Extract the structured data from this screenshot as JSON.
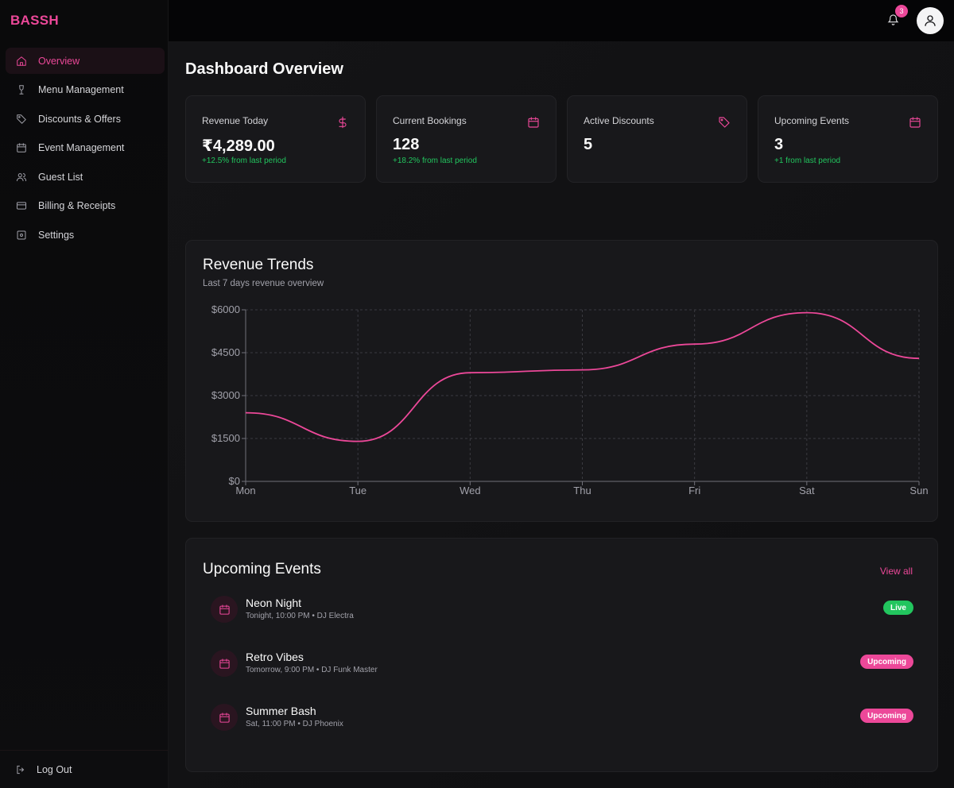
{
  "brand": "BASSH",
  "sidebar": {
    "items": [
      {
        "label": "Overview",
        "icon": "home-icon"
      },
      {
        "label": "Menu Management",
        "icon": "wine-glass-icon"
      },
      {
        "label": "Discounts & Offers",
        "icon": "tag-icon"
      },
      {
        "label": "Event Management",
        "icon": "calendar-icon"
      },
      {
        "label": "Guest List",
        "icon": "users-icon"
      },
      {
        "label": "Billing & Receipts",
        "icon": "credit-card-icon"
      },
      {
        "label": "Settings",
        "icon": "settings-icon"
      }
    ],
    "logout_label": "Log Out"
  },
  "topbar": {
    "notification_count": "3"
  },
  "page": {
    "title": "Dashboard Overview"
  },
  "stats": [
    {
      "label": "Revenue Today",
      "value": "₹4,289.00",
      "change": "+12.5% from last period",
      "icon": "dollar-icon"
    },
    {
      "label": "Current Bookings",
      "value": "128",
      "change": "+18.2% from last period",
      "icon": "calendar-icon"
    },
    {
      "label": "Active Discounts",
      "value": "5",
      "change": "",
      "icon": "tag-icon"
    },
    {
      "label": "Upcoming Events",
      "value": "3",
      "change": "+1 from last period",
      "icon": "calendar-icon"
    }
  ],
  "revenue_panel": {
    "title": "Revenue Trends",
    "subtitle": "Last 7 days revenue overview"
  },
  "chart_data": {
    "type": "line",
    "categories": [
      "Mon",
      "Tue",
      "Wed",
      "Thu",
      "Fri",
      "Sat",
      "Sun"
    ],
    "values": [
      2400,
      1400,
      3800,
      3900,
      4800,
      5900,
      4300
    ],
    "y_ticks": [
      "$0",
      "$1500",
      "$3000",
      "$4500",
      "$6000"
    ],
    "ylim": [
      0,
      6000
    ],
    "grid": true,
    "line_color": "#ec4899"
  },
  "events_panel": {
    "title": "Upcoming Events",
    "view_all": "View all",
    "events": [
      {
        "name": "Neon Night",
        "meta": "Tonight, 10:00 PM • DJ Electra",
        "status": "Live"
      },
      {
        "name": "Retro Vibes",
        "meta": "Tomorrow, 9:00 PM • DJ Funk Master",
        "status": "Upcoming"
      },
      {
        "name": "Summer Bash",
        "meta": "Sat, 11:00 PM • DJ Phoenix",
        "status": "Upcoming"
      }
    ]
  },
  "colors": {
    "accent": "#ec4899",
    "success": "#22c55e",
    "background": "#0b0b0d",
    "card": "#18181b"
  }
}
